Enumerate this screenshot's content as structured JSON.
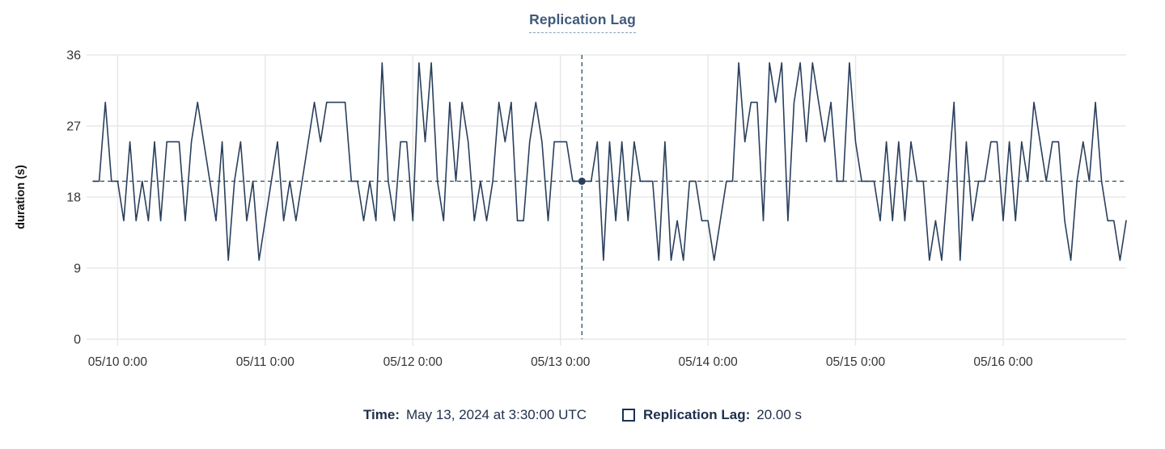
{
  "chart": {
    "title": "Replication Lag"
  },
  "colors": {
    "series": "#2a3f5c",
    "crosshair": "#3a5a6b",
    "dot": "#2a3f5c",
    "title_text": "#3f5a7a",
    "readout_text": "#1f2f4d",
    "swatch_border": "#1d3154",
    "grid": "#e8e8e8"
  },
  "chart_data": {
    "type": "line",
    "title": "Replication Lag",
    "xlabel": "",
    "ylabel": "duration (s)",
    "ylim": [
      0,
      36
    ],
    "yticks": [
      0,
      9,
      18,
      27,
      36
    ],
    "grid": true,
    "x_unit": "hours",
    "x_domain": [
      0,
      168
    ],
    "x_start": "05/09 20:00",
    "point_interval_hours": 1,
    "xticks": [
      {
        "t": 4,
        "label": "05/10 0:00"
      },
      {
        "t": 28,
        "label": "05/11 0:00"
      },
      {
        "t": 52,
        "label": "05/12 0:00"
      },
      {
        "t": 76,
        "label": "05/13 0:00"
      },
      {
        "t": 100,
        "label": "05/14 0:00"
      },
      {
        "t": 124,
        "label": "05/15 0:00"
      },
      {
        "t": 148,
        "label": "05/16 0:00"
      }
    ],
    "series": [
      {
        "name": "Replication Lag",
        "unit": "s",
        "values": [
          20,
          20,
          30,
          20,
          20,
          15,
          25,
          15,
          20,
          15,
          25,
          15,
          25,
          25,
          25,
          15,
          25,
          30,
          25,
          20,
          15,
          25,
          10,
          20,
          25,
          15,
          20,
          10,
          15,
          20,
          25,
          15,
          20,
          15,
          20,
          25,
          30,
          25,
          30,
          30,
          30,
          30,
          20,
          20,
          15,
          20,
          15,
          35,
          20,
          15,
          25,
          25,
          15,
          35,
          25,
          35,
          20,
          15,
          30,
          20,
          30,
          25,
          15,
          20,
          15,
          20,
          30,
          25,
          30,
          15,
          15,
          25,
          30,
          25,
          15,
          25,
          25,
          25,
          20,
          20,
          20,
          20,
          25,
          10,
          25,
          15,
          25,
          15,
          25,
          20,
          20,
          20,
          10,
          25,
          10,
          15,
          10,
          20,
          20,
          15,
          15,
          10,
          15,
          20,
          20,
          35,
          25,
          30,
          30,
          15,
          35,
          30,
          35,
          15,
          30,
          35,
          25,
          35,
          30,
          25,
          30,
          20,
          20,
          35,
          25,
          20,
          20,
          20,
          15,
          25,
          15,
          25,
          15,
          25,
          20,
          20,
          10,
          15,
          10,
          20,
          30,
          10,
          25,
          15,
          20,
          20,
          25,
          25,
          15,
          25,
          15,
          25,
          20,
          30,
          25,
          20,
          25,
          25,
          15,
          10,
          20,
          25,
          20,
          30,
          20,
          15,
          15,
          10,
          15
        ]
      }
    ],
    "crosshair": {
      "t": 79.5,
      "value": 20,
      "time": "May 13, 2024 at 3:30:00 UTC",
      "display_value": "20.00 s"
    }
  },
  "readout": {
    "time_label": "Time:",
    "time_value": "May 13, 2024 at 3:30:00 UTC",
    "series_label": "Replication Lag:",
    "series_value": "20.00 s"
  }
}
